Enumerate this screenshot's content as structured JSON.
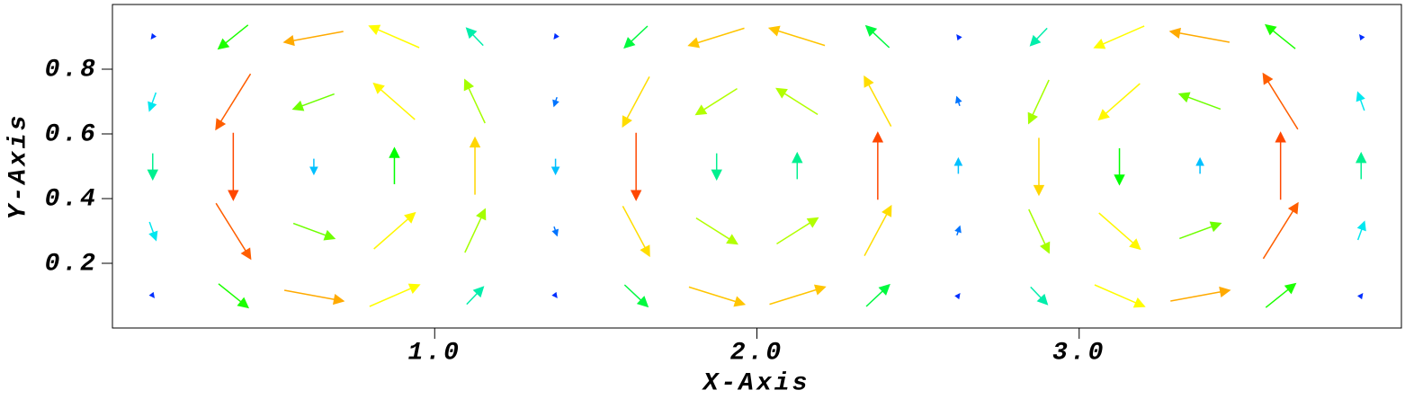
{
  "chart_data": {
    "type": "quiver",
    "xlabel": "X-Axis",
    "ylabel": "Y-Axis",
    "xlim": [
      0,
      4
    ],
    "ylim": [
      0,
      1
    ],
    "xticks": [
      {
        "value": 1,
        "label": "1.0"
      },
      {
        "value": 2,
        "label": "2.0"
      },
      {
        "value": 3,
        "label": "3.0"
      }
    ],
    "yticks": [
      0.2,
      0.4,
      0.6,
      0.8
    ],
    "colormap": [
      "#0000ff",
      "#00e5ff",
      "#00ff00",
      "#ffff00",
      "#ff0000"
    ],
    "clim": [
      0,
      1
    ],
    "x": [
      0.125,
      0.375,
      0.625,
      0.875,
      1.125,
      1.375,
      1.625,
      1.875,
      2.125,
      2.375,
      2.625,
      2.875,
      3.125,
      3.375,
      3.625,
      3.875,
      0.125,
      0.375,
      0.625,
      0.875,
      1.125,
      1.375,
      1.625,
      1.875,
      2.125,
      2.375,
      2.625,
      2.875,
      3.125,
      3.375,
      3.625,
      3.875,
      0.125,
      0.375,
      0.625,
      0.875,
      1.125,
      1.375,
      1.625,
      1.875,
      2.125,
      2.375,
      2.625,
      2.875,
      3.125,
      3.375,
      3.625,
      3.875,
      0.125,
      0.375,
      0.625,
      0.875,
      1.125,
      1.375,
      1.625,
      1.875,
      2.125,
      2.375,
      2.625,
      2.875,
      3.125,
      3.375,
      3.625,
      3.875,
      0.125,
      0.375,
      0.625,
      0.875,
      1.125,
      1.375,
      1.625,
      1.875,
      2.125,
      2.375,
      2.625,
      2.875,
      3.125,
      3.375,
      3.625,
      3.875
    ],
    "y": [
      0.1,
      0.1,
      0.1,
      0.1,
      0.1,
      0.1,
      0.1,
      0.1,
      0.1,
      0.1,
      0.1,
      0.1,
      0.1,
      0.1,
      0.1,
      0.1,
      0.3,
      0.3,
      0.3,
      0.3,
      0.3,
      0.3,
      0.3,
      0.3,
      0.3,
      0.3,
      0.3,
      0.3,
      0.3,
      0.3,
      0.3,
      0.3,
      0.5,
      0.5,
      0.5,
      0.5,
      0.5,
      0.5,
      0.5,
      0.5,
      0.5,
      0.5,
      0.5,
      0.5,
      0.5,
      0.5,
      0.5,
      0.5,
      0.7,
      0.7,
      0.7,
      0.7,
      0.7,
      0.7,
      0.7,
      0.7,
      0.7,
      0.7,
      0.7,
      0.7,
      0.7,
      0.7,
      0.7,
      0.7,
      0.9,
      0.9,
      0.9,
      0.9,
      0.9,
      0.9,
      0.9,
      0.9,
      0.9,
      0.9,
      0.9,
      0.9,
      0.9,
      0.9,
      0.9,
      0.9
    ],
    "u": [
      0.03,
      0.41,
      0.82,
      0.69,
      0.23,
      0.03,
      0.32,
      0.77,
      0.77,
      0.32,
      0.03,
      0.23,
      0.69,
      0.82,
      0.41,
      0.03,
      0.09,
      0.48,
      0.57,
      0.57,
      0.28,
      0.04,
      0.37,
      0.57,
      0.57,
      0.37,
      0.04,
      0.28,
      0.57,
      0.57,
      0.48,
      0.09,
      0,
      0,
      0,
      0,
      0,
      0,
      0,
      0,
      0,
      0,
      0,
      0,
      0,
      0,
      0,
      0,
      -0.09,
      -0.48,
      -0.57,
      -0.57,
      -0.28,
      -0.04,
      -0.37,
      -0.57,
      -0.57,
      -0.37,
      -0.04,
      -0.28,
      -0.57,
      -0.57,
      -0.48,
      -0.09,
      -0.03,
      -0.41,
      -0.82,
      -0.69,
      -0.23,
      -0.03,
      -0.32,
      -0.77,
      -0.77,
      -0.32,
      -0.03,
      -0.23,
      -0.69,
      -0.82,
      -0.41,
      -0.03
    ],
    "v": [
      -0.04,
      -0.33,
      -0.15,
      0.3,
      0.24,
      -0.04,
      -0.3,
      -0.24,
      0.24,
      0.3,
      0.04,
      -0.24,
      -0.3,
      0.15,
      0.33,
      0.04,
      -0.25,
      -0.77,
      -0.21,
      0.5,
      0.6,
      -0.12,
      -0.69,
      -0.36,
      0.36,
      0.69,
      0.12,
      -0.6,
      -0.5,
      0.21,
      0.77,
      0.25,
      -0.36,
      -0.93,
      -0.21,
      0.5,
      0.79,
      -0.21,
      -0.93,
      -0.36,
      0.36,
      0.93,
      0.21,
      -0.79,
      -0.5,
      0.21,
      0.93,
      0.36,
      -0.25,
      -0.77,
      -0.21,
      0.5,
      0.6,
      -0.12,
      -0.69,
      -0.36,
      0.36,
      0.69,
      0.12,
      -0.6,
      -0.5,
      0.21,
      0.77,
      0.25,
      -0.04,
      -0.33,
      -0.15,
      0.3,
      0.24,
      -0.04,
      -0.3,
      -0.24,
      0.24,
      0.3,
      0.04,
      -0.24,
      -0.3,
      0.15,
      0.33,
      0.04
    ]
  }
}
